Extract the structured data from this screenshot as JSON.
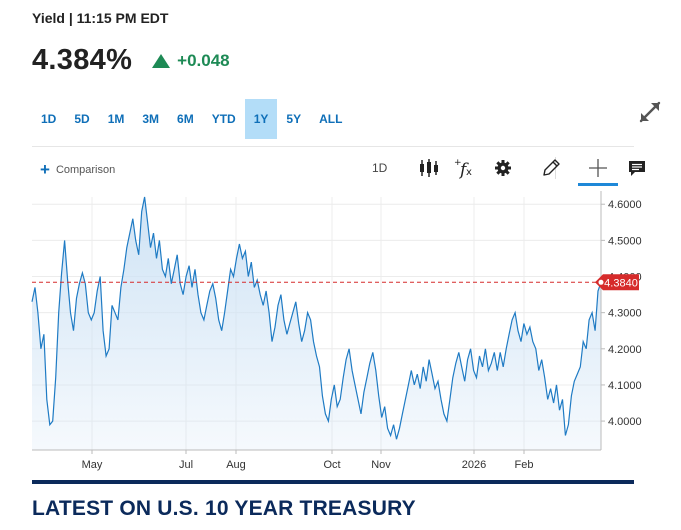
{
  "header": {
    "yield_line": "Yield | 11:15 PM EDT",
    "price": "4.384%",
    "change": "+0.048",
    "arrow_icon": "triangle-up-icon",
    "up_color": "#1d8a55"
  },
  "ranges": [
    {
      "label": "1D",
      "active": false
    },
    {
      "label": "5D",
      "active": false
    },
    {
      "label": "1M",
      "active": false
    },
    {
      "label": "3M",
      "active": false
    },
    {
      "label": "6M",
      "active": false
    },
    {
      "label": "YTD",
      "active": false
    },
    {
      "label": "1Y",
      "active": true
    },
    {
      "label": "5Y",
      "active": false
    },
    {
      "label": "ALL",
      "active": false
    }
  ],
  "toolbar": {
    "comparison_label": "Comparison",
    "interval": "1D",
    "icons": [
      "candlestick-icon",
      "studies-fx-icon",
      "gear-icon",
      "pencil-icon",
      "crosshair-icon",
      "comment-icon"
    ]
  },
  "chart_data": {
    "type": "area",
    "title": "",
    "xlabel": "",
    "ylabel": "",
    "ylim": [
      3.92,
      4.62
    ],
    "y_ticks": [
      "4.6000",
      "4.5000",
      "4.4000",
      "4.3000",
      "4.2000",
      "4.1000",
      "4.0000"
    ],
    "x_ticks": [
      "May",
      "Jul",
      "Aug",
      "Oct",
      "Nov",
      "2026",
      "Feb"
    ],
    "grid": true,
    "line_color": "#1f7bc4",
    "fill_color": "#cfe3f5",
    "reference_line": {
      "value": 4.384,
      "label": "4.3840",
      "color": "#d62b2b"
    },
    "series": [
      {
        "values": [
          4.33,
          4.37,
          4.3,
          4.2,
          4.24,
          4.06,
          3.99,
          4.0,
          4.12,
          4.3,
          4.41,
          4.5,
          4.39,
          4.3,
          4.25,
          4.34,
          4.38,
          4.41,
          4.38,
          4.3,
          4.28,
          4.3,
          4.36,
          4.4,
          4.25,
          4.18,
          4.2,
          4.32,
          4.3,
          4.28,
          4.37,
          4.42,
          4.48,
          4.52,
          4.56,
          4.5,
          4.46,
          4.58,
          4.62,
          4.55,
          4.48,
          4.52,
          4.45,
          4.5,
          4.42,
          4.4,
          4.45,
          4.38,
          4.42,
          4.46,
          4.38,
          4.35,
          4.4,
          4.43,
          4.37,
          4.42,
          4.35,
          4.3,
          4.28,
          4.32,
          4.36,
          4.38,
          4.34,
          4.28,
          4.25,
          4.3,
          4.36,
          4.42,
          4.4,
          4.45,
          4.49,
          4.45,
          4.47,
          4.4,
          4.44,
          4.37,
          4.39,
          4.35,
          4.32,
          4.36,
          4.3,
          4.22,
          4.26,
          4.32,
          4.35,
          4.28,
          4.24,
          4.27,
          4.3,
          4.33,
          4.27,
          4.22,
          4.25,
          4.3,
          4.28,
          4.22,
          4.18,
          4.15,
          4.07,
          4.02,
          4.0,
          4.06,
          4.1,
          4.04,
          4.06,
          4.12,
          4.17,
          4.2,
          4.14,
          4.1,
          4.06,
          4.02,
          4.08,
          4.12,
          4.16,
          4.19,
          4.14,
          4.07,
          4.01,
          4.04,
          3.98,
          3.96,
          3.99,
          3.95,
          3.98,
          4.02,
          4.06,
          4.1,
          4.14,
          4.1,
          4.13,
          4.09,
          4.15,
          4.11,
          4.17,
          4.13,
          4.09,
          4.11,
          4.06,
          4.02,
          4.0,
          4.06,
          4.12,
          4.16,
          4.19,
          4.15,
          4.11,
          4.17,
          4.2,
          4.14,
          4.12,
          4.18,
          4.15,
          4.2,
          4.14,
          4.16,
          4.19,
          4.14,
          4.19,
          4.15,
          4.2,
          4.24,
          4.28,
          4.3,
          4.25,
          4.22,
          4.27,
          4.24,
          4.26,
          4.22,
          4.2,
          4.14,
          4.17,
          4.12,
          4.06,
          4.09,
          4.05,
          4.1,
          4.03,
          4.06,
          3.96,
          3.99,
          4.07,
          4.11,
          4.13,
          4.15,
          4.22,
          4.2,
          4.28,
          4.3,
          4.25,
          4.36,
          4.384
        ]
      }
    ]
  },
  "section_heading": "LATEST ON U.S. 10 YEAR TREASURY"
}
